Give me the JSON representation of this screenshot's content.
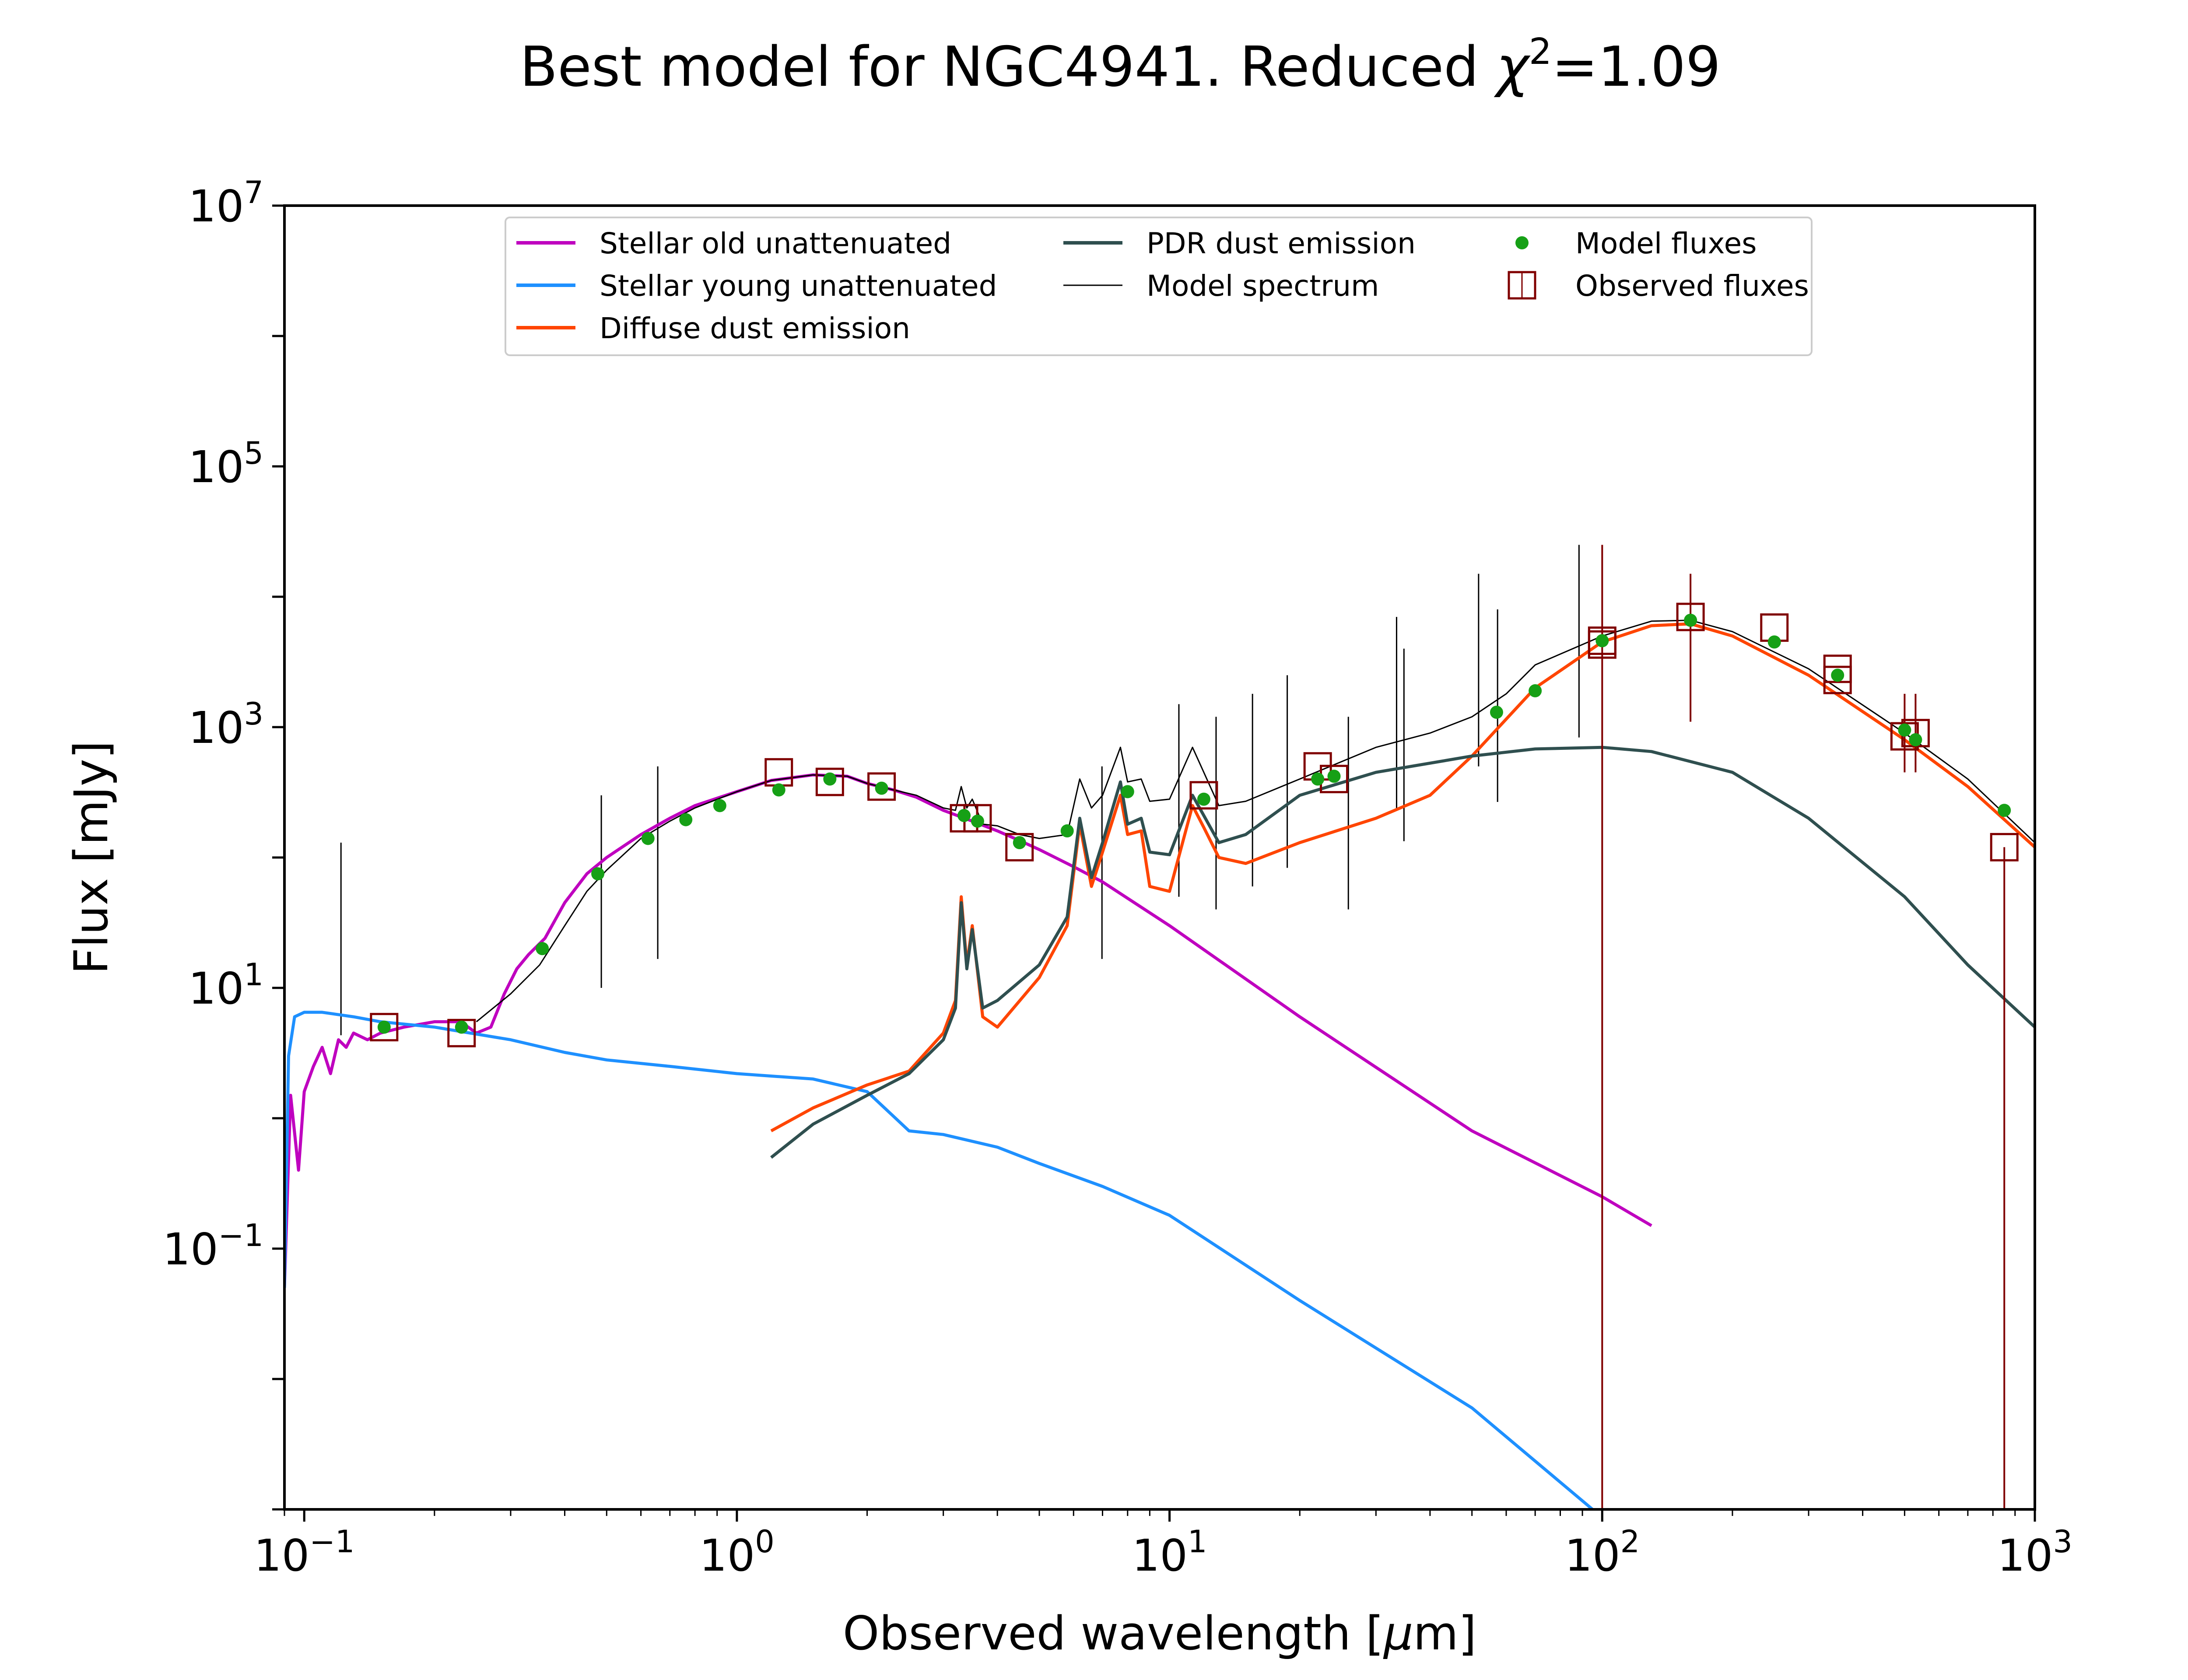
{
  "chart_data": {
    "type": "line",
    "title": "Best model for NGC4941. Reduced χ²=1.09",
    "title_parts": {
      "pre": "Best model for NGC4941. Reduced ",
      "chi": "χ",
      "sup": "2",
      "post": "=1.09"
    },
    "xlabel": {
      "pre": "Observed wavelength [",
      "mu": "μ",
      "post": "m]"
    },
    "ylabel": "Flux [mJy]",
    "xscale": "log",
    "yscale": "log",
    "xlim": [
      0.09,
      1000
    ],
    "ylim": [
      0.001,
      10000000
    ],
    "x_ticks": [
      {
        "value": 0.1,
        "base": "10",
        "exp": "−1"
      },
      {
        "value": 1,
        "base": "10",
        "exp": "0"
      },
      {
        "value": 10,
        "base": "10",
        "exp": "1"
      },
      {
        "value": 100,
        "base": "10",
        "exp": "2"
      },
      {
        "value": 1000,
        "base": "10",
        "exp": "3"
      }
    ],
    "y_ticks": [
      {
        "value": 0.1,
        "base": "10",
        "exp": "−1"
      },
      {
        "value": 10,
        "base": "10",
        "exp": "1"
      },
      {
        "value": 1000,
        "base": "10",
        "exp": "3"
      },
      {
        "value": 100000,
        "base": "10",
        "exp": "5"
      },
      {
        "value": 10000000,
        "base": "10",
        "exp": "7"
      }
    ],
    "grid": false,
    "legend_position": "top",
    "legend": [
      {
        "label": "Stellar old unattenuated",
        "marker": "line",
        "color": "#bf00bf"
      },
      {
        "label": "Stellar young unattenuated",
        "marker": "line",
        "color": "#1e90ff"
      },
      {
        "label": "Diffuse dust emission",
        "marker": "line",
        "color": "#ff4500"
      },
      {
        "label": "PDR dust emission",
        "marker": "line",
        "color": "#2f4f4f"
      },
      {
        "label": "Model spectrum",
        "marker": "thinline",
        "color": "#000000"
      },
      {
        "label": "Model fluxes",
        "marker": "dot",
        "color": "#16a016"
      },
      {
        "label": "Observed fluxes",
        "marker": "square",
        "color": "#800000"
      }
    ],
    "series": [
      {
        "name": "Stellar old unattenuated",
        "color": "#bf00bf",
        "width": 7,
        "x": [
          0.09,
          0.093,
          0.097,
          0.1,
          0.105,
          0.11,
          0.115,
          0.12,
          0.125,
          0.13,
          0.14,
          0.15,
          0.17,
          0.2,
          0.23,
          0.25,
          0.27,
          0.29,
          0.31,
          0.33,
          0.36,
          0.4,
          0.45,
          0.5,
          0.6,
          0.7,
          0.8,
          1.0,
          1.2,
          1.5,
          1.8,
          2.0,
          2.3,
          2.6,
          3.0,
          3.5,
          4.0,
          4.5,
          5.0,
          6.0,
          7.0,
          10,
          20,
          50,
          100,
          130
        ],
        "y": [
          0.05,
          1.5,
          0.4,
          1.6,
          2.5,
          3.5,
          2.2,
          4.0,
          3.5,
          4.5,
          4.0,
          4.5,
          5.0,
          5.5,
          5.5,
          4.5,
          5.0,
          9.0,
          14,
          18,
          24,
          45,
          75,
          100,
          150,
          200,
          250,
          320,
          390,
          430,
          420,
          370,
          330,
          290,
          230,
          190,
          160,
          135,
          115,
          85,
          65,
          30,
          6,
          0.8,
          0.25,
          0.15
        ]
      },
      {
        "name": "Stellar young unattenuated",
        "color": "#1e90ff",
        "width": 7,
        "x": [
          0.09,
          0.092,
          0.095,
          0.1,
          0.11,
          0.13,
          0.15,
          0.2,
          0.3,
          0.4,
          0.5,
          0.7,
          1.0,
          1.5,
          2.0,
          2.5,
          3.0,
          4.0,
          5.0,
          7.0,
          10,
          20,
          50,
          95
        ],
        "y": [
          0.05,
          3.0,
          6.0,
          6.5,
          6.5,
          6.0,
          5.5,
          5.0,
          4.0,
          3.2,
          2.8,
          2.5,
          2.2,
          2.0,
          1.6,
          0.8,
          0.75,
          0.6,
          0.45,
          0.3,
          0.18,
          0.04,
          0.006,
          0.001
        ]
      },
      {
        "name": "Diffuse dust emission",
        "color": "#ff4500",
        "width": 7,
        "x": [
          1.2,
          1.5,
          2.0,
          2.5,
          3.0,
          3.2,
          3.3,
          3.4,
          3.5,
          3.7,
          4.0,
          5.0,
          5.8,
          6.2,
          6.6,
          7.0,
          7.7,
          8.0,
          8.6,
          9.0,
          10.0,
          11.3,
          12.0,
          13.0,
          15.0,
          20.0,
          30.0,
          40.0,
          50.0,
          70.0,
          100,
          130,
          160,
          200,
          300,
          500,
          700,
          1000
        ],
        "y": [
          0.8,
          1.2,
          1.8,
          2.3,
          4.5,
          8.0,
          50,
          15,
          30,
          6.0,
          5.0,
          12,
          30,
          180,
          60,
          110,
          300,
          150,
          160,
          60,
          55,
          250,
          170,
          100,
          90,
          130,
          200,
          300,
          600,
          2000,
          4500,
          6000,
          6200,
          5000,
          2500,
          800,
          350,
          120
        ]
      },
      {
        "name": "PDR dust emission",
        "color": "#2f4f4f",
        "width": 7,
        "x": [
          1.2,
          1.5,
          2.0,
          2.5,
          3.0,
          3.2,
          3.3,
          3.4,
          3.5,
          3.7,
          4.0,
          5.0,
          5.8,
          6.2,
          6.6,
          7.0,
          7.7,
          8.0,
          8.6,
          9.0,
          10.0,
          11.3,
          12.0,
          13.0,
          15.0,
          20.0,
          30.0,
          50.0,
          70.0,
          100,
          130,
          200,
          300,
          500,
          700,
          1000
        ],
        "y": [
          0.5,
          0.9,
          1.5,
          2.2,
          4.0,
          7.0,
          45,
          14,
          28,
          7.0,
          8.0,
          15,
          35,
          200,
          70,
          130,
          380,
          180,
          200,
          110,
          105,
          300,
          210,
          130,
          150,
          300,
          450,
          600,
          680,
          700,
          650,
          450,
          200,
          50,
          15,
          5.0
        ]
      },
      {
        "name": "Model spectrum",
        "color": "#000000",
        "width": 3,
        "x": [
          0.25,
          0.3,
          0.35,
          0.4,
          0.45,
          0.5,
          0.6,
          0.7,
          0.8,
          1.0,
          1.2,
          1.5,
          1.8,
          2.0,
          2.3,
          2.6,
          3.0,
          3.2,
          3.3,
          3.4,
          3.5,
          3.7,
          4.0,
          4.5,
          5.0,
          5.8,
          6.2,
          6.6,
          7.0,
          7.7,
          8.0,
          8.6,
          9.0,
          10.0,
          11.3,
          12.0,
          13.0,
          15.0,
          20.0,
          30.0,
          40.0,
          50.0,
          60.0,
          70.0,
          100,
          130,
          160,
          200,
          300,
          500,
          700,
          1000
        ],
        "y": [
          5.5,
          9.0,
          15,
          30,
          55,
          80,
          140,
          190,
          240,
          320,
          390,
          430,
          420,
          370,
          330,
          300,
          240,
          230,
          350,
          240,
          280,
          180,
          175,
          150,
          140,
          150,
          400,
          240,
          300,
          700,
          380,
          400,
          270,
          280,
          700,
          450,
          250,
          270,
          400,
          700,
          900,
          1200,
          1800,
          3000,
          5000,
          6500,
          6600,
          5400,
          2800,
          900,
          400,
          130
        ]
      }
    ],
    "spikes": {
      "color": "#000000",
      "width": 3,
      "x": [
        0.1216,
        0.486,
        0.6563,
        6.98,
        10.51,
        12.81,
        15.55,
        18.71,
        25.9,
        33.48,
        34.82,
        51.8,
        57.3,
        88.4
      ],
      "top": [
        130,
        300,
        500,
        500,
        1500,
        1200,
        1800,
        2500,
        1200,
        7000,
        4000,
        15000,
        8000,
        25000
      ]
    },
    "model_fluxes": {
      "color": "#16a016",
      "x": [
        0.153,
        0.231,
        0.355,
        0.477,
        0.623,
        0.762,
        0.913,
        1.25,
        1.64,
        2.16,
        3.35,
        3.6,
        4.5,
        5.8,
        8.0,
        12.0,
        22.0,
        24.0,
        57.0,
        70.0,
        100,
        160,
        250,
        350,
        500,
        530,
        850
      ],
      "y": [
        5.0,
        5.0,
        20,
        75,
        140,
        195,
        250,
        330,
        400,
        340,
        210,
        190,
        130,
        160,
        320,
        280,
        400,
        420,
        1300,
        1900,
        4600,
        6600,
        4500,
        2500,
        950,
        800,
        230
      ]
    },
    "observed_fluxes": {
      "color": "#800000",
      "x": [
        0.153,
        0.231,
        1.25,
        1.64,
        2.16,
        3.35,
        3.6,
        4.5,
        12.0,
        22.0,
        24.0,
        100,
        100,
        160,
        250,
        350,
        350,
        500,
        530,
        850
      ],
      "y": [
        5.0,
        4.5,
        450,
        380,
        350,
        200,
        200,
        120,
        300,
        500,
        400,
        4300,
        4600,
        7000,
        5800,
        2800,
        2300,
        850,
        900,
        120
      ],
      "err_low": [
        null,
        null,
        null,
        null,
        null,
        null,
        null,
        null,
        null,
        null,
        null,
        0.001,
        null,
        1100,
        null,
        null,
        null,
        450,
        450,
        0.001
      ],
      "err_high": [
        null,
        null,
        null,
        null,
        null,
        null,
        null,
        null,
        null,
        null,
        null,
        25000,
        null,
        15000,
        null,
        null,
        null,
        1800,
        1800,
        120
      ]
    }
  }
}
